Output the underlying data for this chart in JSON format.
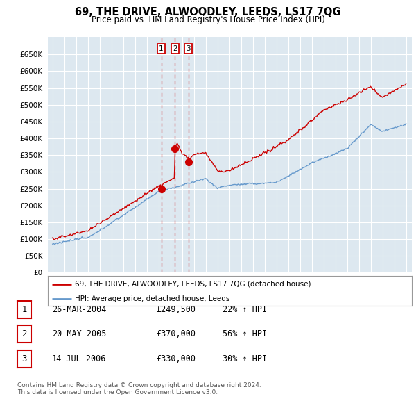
{
  "title": "69, THE DRIVE, ALWOODLEY, LEEDS, LS17 7QG",
  "subtitle": "Price paid vs. HM Land Registry's House Price Index (HPI)",
  "legend_line1": "69, THE DRIVE, ALWOODLEY, LEEDS, LS17 7QG (detached house)",
  "legend_line2": "HPI: Average price, detached house, Leeds",
  "red_color": "#cc0000",
  "blue_color": "#6699cc",
  "chart_bg": "#dde8f0",
  "grid_color": "#ffffff",
  "ylim": [
    0,
    650000
  ],
  "yticks": [
    0,
    50000,
    100000,
    150000,
    200000,
    250000,
    300000,
    350000,
    400000,
    450000,
    500000,
    550000,
    600000,
    650000
  ],
  "sale_year_floats": [
    2004.23,
    2005.38,
    2006.54
  ],
  "sale_prices": [
    249500,
    370000,
    330000
  ],
  "sale_labels": [
    "1",
    "2",
    "3"
  ],
  "table_data": [
    [
      "1",
      "26-MAR-2004",
      "£249,500",
      "22% ↑ HPI"
    ],
    [
      "2",
      "20-MAY-2005",
      "£370,000",
      "56% ↑ HPI"
    ],
    [
      "3",
      "14-JUL-2006",
      "£330,000",
      "30% ↑ HPI"
    ]
  ],
  "footnote1": "Contains HM Land Registry data © Crown copyright and database right 2024.",
  "footnote2": "This data is licensed under the Open Government Licence v3.0."
}
